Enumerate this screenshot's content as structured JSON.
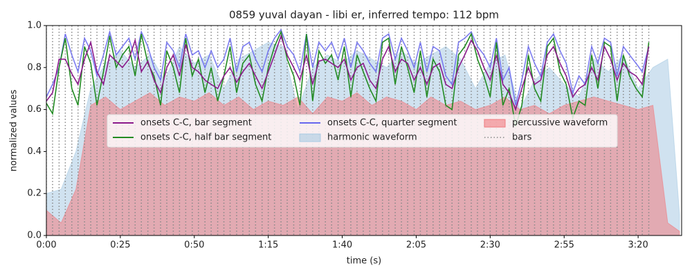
{
  "chart_data": {
    "type": "line",
    "title": "0859 yuval dayan - libi er, inferred tempo: 112 bpm",
    "x_label": "time (s)",
    "y_label": "normalized values",
    "xlim": [
      0,
      214.7
    ],
    "ylim": [
      0,
      1
    ],
    "xticks": [
      {
        "value": 0,
        "label": "0:00"
      },
      {
        "value": 25,
        "label": "0:25"
      },
      {
        "value": 50,
        "label": "0:50"
      },
      {
        "value": 75,
        "label": "1:15"
      },
      {
        "value": 100,
        "label": "1:40"
      },
      {
        "value": 125,
        "label": "2:05"
      },
      {
        "value": 150,
        "label": "2:30"
      },
      {
        "value": 175,
        "label": "2:55"
      },
      {
        "value": 200,
        "label": "3:20"
      }
    ],
    "yticks": [
      {
        "value": 0,
        "label": "0.0"
      },
      0.2,
      0.4,
      0.6,
      0.8,
      {
        "value": 1,
        "label": "1.0"
      }
    ],
    "x": [
      0,
      2.1,
      4.3,
      6.4,
      8.6,
      10.7,
      12.9,
      15.0,
      17.1,
      19.3,
      21.4,
      23.6,
      25.7,
      27.9,
      30.0,
      32.1,
      34.3,
      36.4,
      38.6,
      40.7,
      42.9,
      45.0,
      47.1,
      49.3,
      51.4,
      53.6,
      55.7,
      57.9,
      60.0,
      62.1,
      64.3,
      66.4,
      68.6,
      70.7,
      72.9,
      75.0,
      77.1,
      79.3,
      81.4,
      83.6,
      85.7,
      87.9,
      90.0,
      92.1,
      94.3,
      96.4,
      98.6,
      100.7,
      102.9,
      105.0,
      107.1,
      109.3,
      111.4,
      113.6,
      115.7,
      117.9,
      120.0,
      122.1,
      124.3,
      126.4,
      128.6,
      130.7,
      132.9,
      135.0,
      137.1,
      139.3,
      141.4,
      143.6,
      145.7,
      147.9,
      150.0,
      152.1,
      154.3,
      156.4,
      158.6,
      160.7,
      162.9,
      165.0,
      167.1,
      169.3,
      171.4,
      173.6,
      175.7,
      177.9,
      180.0,
      182.1,
      184.3,
      186.4,
      188.6,
      190.7,
      192.9,
      195.0,
      197.1,
      199.3,
      201.4,
      203.6
    ],
    "series": [
      {
        "name": "onsets C-C, bar segment",
        "color": "#8b1a8b",
        "kind": "line",
        "values": [
          0.64,
          0.68,
          0.84,
          0.84,
          0.77,
          0.72,
          0.84,
          0.92,
          0.78,
          0.72,
          0.86,
          0.83,
          0.8,
          0.84,
          0.93,
          0.78,
          0.83,
          0.74,
          0.68,
          0.8,
          0.86,
          0.76,
          0.91,
          0.8,
          0.78,
          0.74,
          0.72,
          0.7,
          0.76,
          0.8,
          0.73,
          0.78,
          0.82,
          0.76,
          0.7,
          0.78,
          0.86,
          0.95,
          0.86,
          0.8,
          0.74,
          0.86,
          0.72,
          0.83,
          0.84,
          0.82,
          0.8,
          0.84,
          0.74,
          0.8,
          0.82,
          0.74,
          0.7,
          0.84,
          0.9,
          0.78,
          0.84,
          0.82,
          0.74,
          0.8,
          0.72,
          0.8,
          0.82,
          0.72,
          0.7,
          0.8,
          0.86,
          0.93,
          0.88,
          0.8,
          0.74,
          0.86,
          0.72,
          0.68,
          0.6,
          0.7,
          0.8,
          0.72,
          0.74,
          0.86,
          0.9,
          0.82,
          0.76,
          0.66,
          0.7,
          0.72,
          0.8,
          0.74,
          0.9,
          0.84,
          0.74,
          0.82,
          0.78,
          0.76,
          0.72,
          0.9
        ]
      },
      {
        "name": "onsets C-C, half bar segment",
        "color": "#228b22",
        "kind": "line",
        "values": [
          0.63,
          0.58,
          0.8,
          0.94,
          0.7,
          0.62,
          0.9,
          0.82,
          0.62,
          0.78,
          0.95,
          0.8,
          0.86,
          0.9,
          0.76,
          0.96,
          0.82,
          0.76,
          0.62,
          0.88,
          0.8,
          0.68,
          0.94,
          0.76,
          0.84,
          0.68,
          0.8,
          0.64,
          0.76,
          0.9,
          0.68,
          0.82,
          0.86,
          0.72,
          0.64,
          0.8,
          0.9,
          0.97,
          0.84,
          0.76,
          0.62,
          0.96,
          0.64,
          0.88,
          0.82,
          0.86,
          0.74,
          0.9,
          0.66,
          0.86,
          0.78,
          0.7,
          0.64,
          0.92,
          0.94,
          0.72,
          0.9,
          0.8,
          0.68,
          0.88,
          0.66,
          0.84,
          0.78,
          0.62,
          0.6,
          0.86,
          0.9,
          0.96,
          0.84,
          0.76,
          0.66,
          0.92,
          0.62,
          0.7,
          0.52,
          0.62,
          0.86,
          0.7,
          0.64,
          0.9,
          0.94,
          0.78,
          0.72,
          0.56,
          0.64,
          0.62,
          0.86,
          0.7,
          0.92,
          0.9,
          0.64,
          0.86,
          0.76,
          0.7,
          0.66,
          0.92
        ]
      },
      {
        "name": "onsets C-C, quarter segment",
        "color": "#6666ee",
        "kind": "line",
        "values": [
          0.66,
          0.72,
          0.8,
          0.96,
          0.86,
          0.78,
          0.94,
          0.88,
          0.76,
          0.86,
          0.97,
          0.86,
          0.9,
          0.94,
          0.84,
          0.97,
          0.9,
          0.8,
          0.74,
          0.92,
          0.88,
          0.8,
          0.96,
          0.86,
          0.88,
          0.8,
          0.88,
          0.8,
          0.84,
          0.94,
          0.78,
          0.9,
          0.92,
          0.84,
          0.78,
          0.88,
          0.94,
          0.98,
          0.9,
          0.86,
          0.78,
          0.96,
          0.8,
          0.92,
          0.88,
          0.92,
          0.84,
          0.94,
          0.8,
          0.92,
          0.88,
          0.82,
          0.78,
          0.94,
          0.96,
          0.84,
          0.94,
          0.88,
          0.8,
          0.92,
          0.78,
          0.9,
          0.88,
          0.76,
          0.72,
          0.92,
          0.94,
          0.97,
          0.9,
          0.86,
          0.8,
          0.94,
          0.74,
          0.8,
          0.62,
          0.74,
          0.9,
          0.82,
          0.76,
          0.92,
          0.96,
          0.88,
          0.82,
          0.68,
          0.76,
          0.72,
          0.9,
          0.82,
          0.94,
          0.92,
          0.76,
          0.9,
          0.86,
          0.82,
          0.78,
          0.9
        ]
      },
      {
        "name": "harmonic waveform",
        "color": "#a9cbe3",
        "kind": "area",
        "x": [
          0,
          5,
          10,
          15,
          20,
          25,
          30,
          35,
          40,
          45,
          50,
          55,
          60,
          65,
          70,
          75,
          80,
          85,
          90,
          95,
          100,
          105,
          110,
          115,
          120,
          125,
          130,
          135,
          140,
          145,
          150,
          155,
          160,
          165,
          170,
          175,
          180,
          185,
          190,
          195,
          200,
          205,
          210,
          214
        ],
        "values": [
          0.2,
          0.22,
          0.4,
          0.7,
          0.82,
          0.88,
          0.8,
          0.86,
          0.74,
          0.9,
          0.82,
          0.86,
          0.7,
          0.84,
          0.88,
          0.92,
          0.9,
          0.6,
          0.8,
          0.86,
          0.82,
          0.88,
          0.84,
          0.8,
          0.88,
          0.82,
          0.86,
          0.9,
          0.84,
          0.7,
          0.82,
          0.86,
          0.6,
          0.74,
          0.8,
          0.72,
          0.66,
          0.84,
          0.78,
          0.86,
          0.7,
          0.8,
          0.84,
          0.1
        ]
      },
      {
        "name": "percussive waveform",
        "color": "#f07c80",
        "kind": "area",
        "x": [
          0,
          5,
          10,
          15,
          20,
          25,
          30,
          35,
          40,
          45,
          50,
          55,
          60,
          65,
          70,
          75,
          80,
          85,
          90,
          95,
          100,
          105,
          110,
          115,
          120,
          125,
          130,
          135,
          140,
          145,
          150,
          155,
          160,
          165,
          170,
          175,
          180,
          185,
          190,
          195,
          200,
          205,
          210,
          214
        ],
        "values": [
          0.12,
          0.06,
          0.22,
          0.62,
          0.66,
          0.6,
          0.64,
          0.68,
          0.62,
          0.66,
          0.64,
          0.68,
          0.62,
          0.66,
          0.6,
          0.64,
          0.62,
          0.66,
          0.58,
          0.66,
          0.64,
          0.68,
          0.62,
          0.66,
          0.64,
          0.6,
          0.66,
          0.62,
          0.64,
          0.6,
          0.62,
          0.66,
          0.6,
          0.62,
          0.58,
          0.62,
          0.64,
          0.66,
          0.64,
          0.62,
          0.6,
          0.62,
          0.06,
          0.02
        ]
      },
      {
        "name": "bars",
        "color": "#888888",
        "kind": "bars"
      }
    ]
  }
}
